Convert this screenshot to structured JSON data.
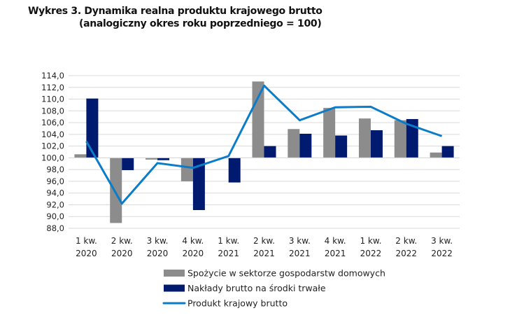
{
  "chart_data": {
    "type": "bar",
    "title": "Wykres 3. Dynamika realna produktu krajowego brutto",
    "subtitle": "(analogiczny okres roku poprzedniego = 100)",
    "categories": [
      [
        "1 kw.",
        "2020"
      ],
      [
        "2 kw.",
        "2020"
      ],
      [
        "3 kw.",
        "2020"
      ],
      [
        "4 kw.",
        "2020"
      ],
      [
        "1 kw.",
        "2021"
      ],
      [
        "2 kw.",
        "2021"
      ],
      [
        "3 kw.",
        "2021"
      ],
      [
        "4 kw.",
        "2021"
      ],
      [
        "1 kw.",
        "2022"
      ],
      [
        "2 kw.",
        "2022"
      ],
      [
        "3 kw.",
        "2022"
      ]
    ],
    "baseline": 100,
    "ylim": [
      88,
      114
    ],
    "yticks": [
      "114,0",
      "112,0",
      "110,0",
      "108,0",
      "106,0",
      "104,0",
      "102,0",
      "100,0",
      "98,0",
      "96,0",
      "94,0",
      "92,0",
      "90,0",
      "88,0"
    ],
    "grid": true,
    "legend_placement": "bottom",
    "series": [
      {
        "name": "Spożycie w sektorze gospodarstw domowych",
        "kind": "bar",
        "color": "#8c8c8c",
        "values": [
          100.6,
          88.9,
          99.7,
          96.0,
          100.0,
          113.0,
          104.9,
          108.5,
          106.7,
          106.4,
          100.9
        ]
      },
      {
        "name": "Nakłady brutto na środki trwałe",
        "kind": "bar",
        "color": "#001a70",
        "values": [
          110.1,
          97.9,
          99.6,
          91.1,
          95.8,
          102.0,
          104.1,
          103.8,
          104.7,
          106.6,
          102.0
        ]
      },
      {
        "name": "Produkt krajowy brutto",
        "kind": "line",
        "color": "#0a7cc9",
        "values": [
          102.8,
          92.2,
          99.1,
          98.3,
          100.3,
          112.3,
          106.4,
          108.6,
          108.7,
          105.8,
          103.7
        ]
      }
    ]
  }
}
